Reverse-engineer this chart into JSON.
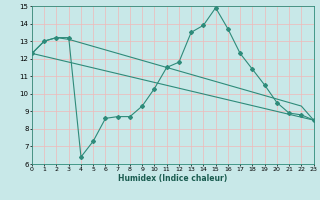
{
  "title": "",
  "xlabel": "Humidex (Indice chaleur)",
  "xlim": [
    0,
    23
  ],
  "ylim": [
    6,
    15
  ],
  "xticks": [
    0,
    1,
    2,
    3,
    4,
    5,
    6,
    7,
    8,
    9,
    10,
    11,
    12,
    13,
    14,
    15,
    16,
    17,
    18,
    19,
    20,
    21,
    22,
    23
  ],
  "yticks": [
    6,
    7,
    8,
    9,
    10,
    11,
    12,
    13,
    14,
    15
  ],
  "background_color": "#c8e8e8",
  "line_color": "#2e8b7a",
  "grid_color": "#f0b8b8",
  "line1_x": [
    0,
    1,
    2,
    3,
    4,
    5,
    6,
    7,
    8,
    9,
    10,
    11,
    12,
    13,
    14,
    15,
    16,
    17,
    18,
    19,
    20,
    21,
    22,
    23
  ],
  "line1_y": [
    12.3,
    13.0,
    13.2,
    13.2,
    6.4,
    7.3,
    8.6,
    8.7,
    8.7,
    9.3,
    10.3,
    11.5,
    11.8,
    13.5,
    13.9,
    14.9,
    13.7,
    12.3,
    11.4,
    10.5,
    9.5,
    8.9,
    8.8,
    8.5
  ],
  "line2_x": [
    0,
    1,
    2,
    3,
    4,
    5,
    6,
    7,
    8,
    9,
    10,
    11,
    12,
    13,
    14,
    15,
    16,
    17,
    18,
    19,
    20,
    21,
    22,
    23
  ],
  "line2_y": [
    12.3,
    13.0,
    13.2,
    13.1,
    12.9,
    12.7,
    12.5,
    12.3,
    12.1,
    11.9,
    11.7,
    11.5,
    11.3,
    11.1,
    10.9,
    10.7,
    10.5,
    10.3,
    10.1,
    9.9,
    9.7,
    9.5,
    9.3,
    8.5
  ],
  "line3_x": [
    0,
    23
  ],
  "line3_y": [
    12.3,
    8.5
  ]
}
